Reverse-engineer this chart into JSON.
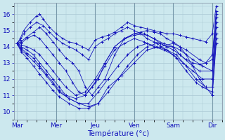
{
  "xlabel": "Température (°c)",
  "background_color": "#cce8ee",
  "grid_color": "#aac8d4",
  "line_color": "#1111bb",
  "marker_color": "#1111bb",
  "ylim": [
    9.5,
    16.7
  ],
  "yticks": [
    10,
    11,
    12,
    13,
    14,
    15,
    16
  ],
  "day_labels": [
    "Mar",
    "Mer",
    "Jeu",
    "Ven",
    "Sam",
    "Dir"
  ],
  "day_x": [
    0.0,
    1.0,
    2.0,
    3.0,
    4.0,
    5.0
  ],
  "xlim": [
    -0.08,
    5.25
  ],
  "series": [
    {
      "x": [
        0.0,
        0.08,
        0.17,
        0.33,
        0.5,
        0.58,
        0.67,
        0.83,
        1.0,
        1.17,
        1.33,
        1.5,
        1.67,
        1.83,
        2.0,
        2.17,
        2.33,
        2.5,
        2.67,
        2.83,
        3.0,
        3.17,
        3.33,
        3.5,
        3.67,
        3.83,
        4.0,
        4.17,
        4.33,
        4.5,
        4.67,
        4.83,
        5.0,
        5.1
      ],
      "y": [
        14.2,
        14.5,
        15.0,
        15.5,
        15.9,
        16.0,
        15.7,
        15.2,
        14.8,
        14.5,
        14.3,
        14.2,
        14.0,
        13.8,
        14.4,
        14.6,
        14.7,
        14.9,
        15.2,
        15.5,
        15.3,
        15.2,
        15.1,
        15.0,
        14.9,
        14.8,
        14.8,
        14.7,
        14.6,
        14.5,
        14.4,
        14.3,
        14.8,
        16.5
      ]
    },
    {
      "x": [
        0.0,
        0.08,
        0.17,
        0.33,
        0.5,
        0.67,
        0.83,
        1.0,
        1.17,
        1.33,
        1.5,
        1.67,
        1.83,
        2.0,
        2.17,
        2.33,
        2.5,
        2.67,
        2.83,
        3.0,
        3.17,
        3.33,
        3.5,
        3.67,
        3.83,
        4.0,
        4.17,
        4.33,
        4.5,
        4.67,
        4.83,
        5.0,
        5.1
      ],
      "y": [
        14.2,
        14.4,
        14.8,
        15.2,
        15.5,
        15.3,
        14.9,
        14.5,
        14.2,
        14.0,
        13.8,
        13.5,
        13.2,
        14.0,
        14.3,
        14.5,
        14.8,
        15.0,
        15.2,
        15.0,
        14.8,
        14.5,
        14.3,
        14.2,
        14.0,
        14.0,
        13.5,
        13.2,
        13.0,
        12.9,
        13.0,
        13.2,
        16.2
      ]
    },
    {
      "x": [
        0.0,
        0.1,
        0.25,
        0.42,
        0.58,
        0.75,
        0.92,
        1.08,
        1.25,
        1.42,
        1.58,
        1.75,
        1.92,
        2.08,
        2.25,
        2.5,
        2.75,
        3.0,
        3.17,
        3.33,
        3.5,
        3.67,
        3.83,
        4.0,
        4.17,
        4.33,
        4.67,
        4.83,
        5.0,
        5.1
      ],
      "y": [
        14.2,
        14.3,
        14.6,
        14.9,
        15.2,
        14.8,
        14.3,
        13.8,
        13.3,
        13.0,
        12.5,
        11.5,
        11.0,
        11.5,
        12.0,
        13.5,
        14.5,
        14.8,
        14.9,
        15.0,
        14.9,
        14.8,
        14.5,
        14.3,
        14.0,
        13.8,
        13.2,
        13.0,
        13.5,
        16.0
      ]
    },
    {
      "x": [
        0.0,
        0.1,
        0.25,
        0.42,
        0.58,
        0.75,
        0.92,
        1.08,
        1.25,
        1.42,
        1.58,
        1.75,
        1.92,
        2.08,
        2.25,
        2.5,
        2.75,
        3.0,
        3.17,
        3.33,
        3.5,
        3.67,
        3.83,
        4.0,
        4.17,
        4.5,
        4.67,
        5.0,
        5.1
      ],
      "y": [
        14.2,
        14.2,
        14.5,
        14.7,
        14.5,
        14.0,
        13.5,
        13.0,
        12.5,
        11.8,
        11.2,
        11.0,
        11.5,
        12.0,
        13.0,
        14.0,
        14.5,
        14.8,
        14.8,
        14.7,
        14.5,
        14.2,
        14.0,
        13.8,
        13.5,
        12.8,
        12.5,
        12.5,
        15.8
      ]
    },
    {
      "x": [
        0.0,
        0.1,
        0.25,
        0.42,
        0.58,
        0.75,
        0.92,
        1.08,
        1.25,
        1.5,
        1.75,
        2.0,
        2.25,
        2.5,
        2.75,
        3.0,
        3.25,
        3.5,
        3.75,
        4.0,
        4.17,
        4.5,
        4.75,
        5.0,
        5.1
      ],
      "y": [
        14.2,
        14.1,
        14.0,
        13.8,
        13.5,
        13.0,
        12.5,
        12.0,
        11.5,
        11.0,
        11.2,
        12.0,
        13.0,
        14.0,
        14.5,
        14.7,
        14.8,
        14.5,
        14.2,
        14.0,
        13.8,
        13.2,
        12.8,
        12.5,
        15.5
      ]
    },
    {
      "x": [
        0.0,
        0.1,
        0.25,
        0.42,
        0.58,
        0.75,
        0.92,
        1.08,
        1.25,
        1.5,
        1.75,
        2.0,
        2.25,
        2.5,
        2.75,
        3.0,
        3.25,
        3.5,
        3.75,
        4.0,
        4.25,
        4.5,
        4.75,
        5.0,
        5.1
      ],
      "y": [
        14.2,
        14.0,
        13.8,
        13.5,
        13.0,
        12.5,
        12.0,
        11.5,
        11.0,
        10.8,
        11.0,
        11.8,
        12.8,
        13.8,
        14.2,
        14.5,
        14.3,
        14.0,
        13.8,
        13.5,
        13.0,
        12.5,
        12.0,
        12.0,
        15.2
      ]
    },
    {
      "x": [
        0.0,
        0.1,
        0.25,
        0.42,
        0.58,
        0.75,
        0.92,
        1.08,
        1.33,
        1.58,
        1.83,
        2.08,
        2.33,
        2.58,
        2.83,
        3.08,
        3.33,
        3.58,
        3.83,
        4.08,
        4.33,
        4.58,
        4.83,
        5.0,
        5.1
      ],
      "y": [
        14.2,
        13.9,
        13.6,
        13.3,
        12.8,
        12.3,
        11.8,
        11.3,
        10.8,
        10.5,
        10.5,
        11.2,
        12.0,
        12.8,
        13.5,
        14.0,
        14.2,
        14.0,
        13.8,
        13.5,
        12.8,
        12.0,
        11.5,
        11.5,
        14.8
      ]
    },
    {
      "x": [
        0.0,
        0.1,
        0.25,
        0.42,
        0.58,
        0.75,
        0.92,
        1.08,
        1.33,
        1.58,
        1.83,
        2.08,
        2.33,
        2.58,
        2.83,
        3.08,
        3.33,
        3.58,
        3.83,
        4.08,
        4.33,
        4.58,
        4.75,
        5.0,
        5.1
      ],
      "y": [
        14.2,
        13.8,
        13.5,
        13.1,
        12.7,
        12.2,
        11.7,
        11.2,
        10.8,
        10.5,
        10.3,
        10.5,
        11.2,
        12.0,
        12.8,
        13.5,
        14.0,
        14.2,
        13.8,
        13.3,
        12.5,
        11.8,
        11.5,
        11.2,
        14.5
      ]
    },
    {
      "x": [
        0.0,
        0.1,
        0.25,
        0.42,
        0.58,
        0.75,
        0.92,
        1.08,
        1.33,
        1.58,
        1.83,
        2.08,
        2.33,
        2.67,
        3.0,
        3.33,
        3.67,
        4.0,
        4.17,
        4.33,
        4.5,
        4.67,
        4.83,
        5.0,
        5.1
      ],
      "y": [
        14.2,
        13.7,
        13.3,
        12.8,
        12.3,
        11.8,
        11.3,
        10.9,
        10.5,
        10.2,
        10.2,
        10.5,
        11.5,
        12.2,
        13.0,
        13.8,
        14.0,
        14.2,
        14.0,
        13.5,
        12.8,
        12.0,
        11.5,
        11.0,
        14.2
      ]
    }
  ]
}
